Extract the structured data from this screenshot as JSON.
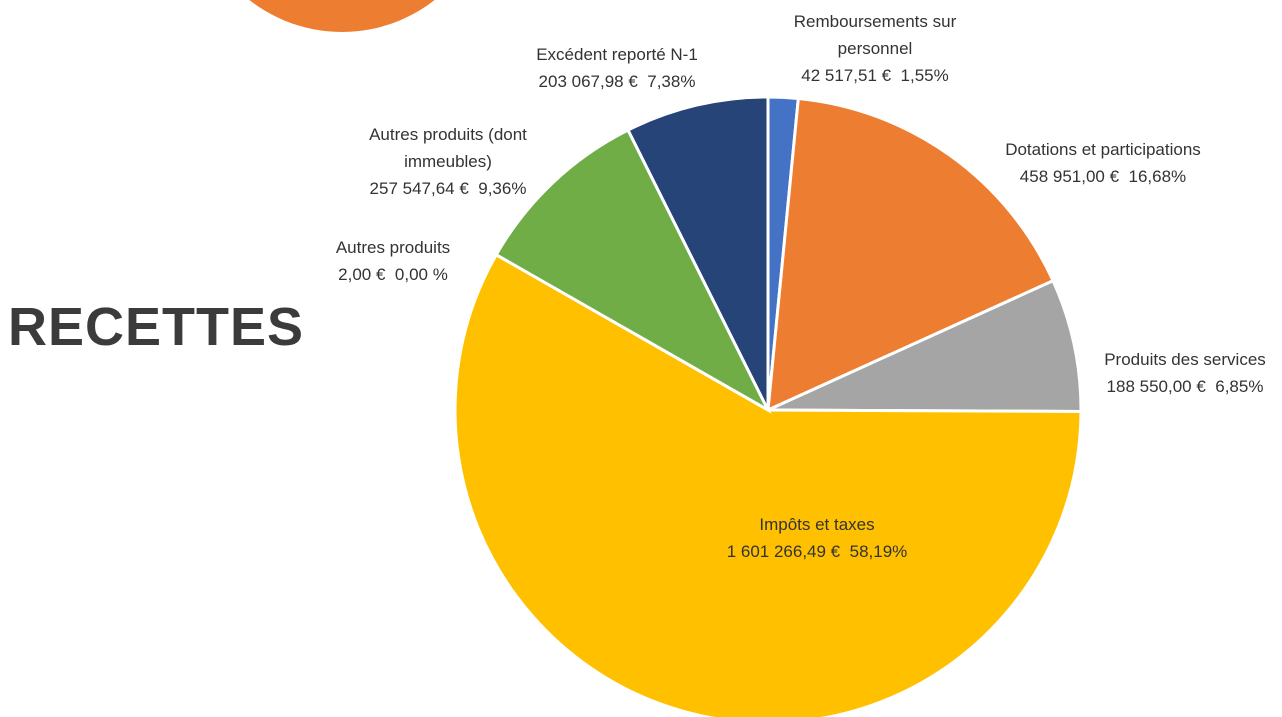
{
  "chart_data": {
    "type": "pie",
    "title": "RECETTES",
    "categories": [
      "Remboursements sur personnel",
      "Dotations et participations",
      "Produits des services",
      "Impôts et taxes",
      "Autres produits",
      "Autres produits (dont immeubles)",
      "Excédent reporté N-1"
    ],
    "values": [
      42517.51,
      458951.0,
      188550.0,
      1601266.49,
      2.0,
      257547.64,
      203067.98
    ],
    "value_labels": [
      "42 517,51 €",
      "458 951,00 €",
      "188 550,00 €",
      "1 601 266,49 €",
      "2,00 €",
      "257 547,64 €",
      "203 067,98 €"
    ],
    "percentages": [
      1.55,
      16.68,
      6.85,
      58.19,
      0.0,
      9.36,
      7.38
    ],
    "percentage_labels": [
      "1,55%",
      "16,68%",
      "6,85%",
      "58,19%",
      "0,00 %",
      "9,36%",
      "7,38%"
    ],
    "colors": [
      "#4472c4",
      "#ed7d31",
      "#a5a5a5",
      "#ffc000",
      "#5b9bd5",
      "#70ad47",
      "#264478"
    ]
  }
}
